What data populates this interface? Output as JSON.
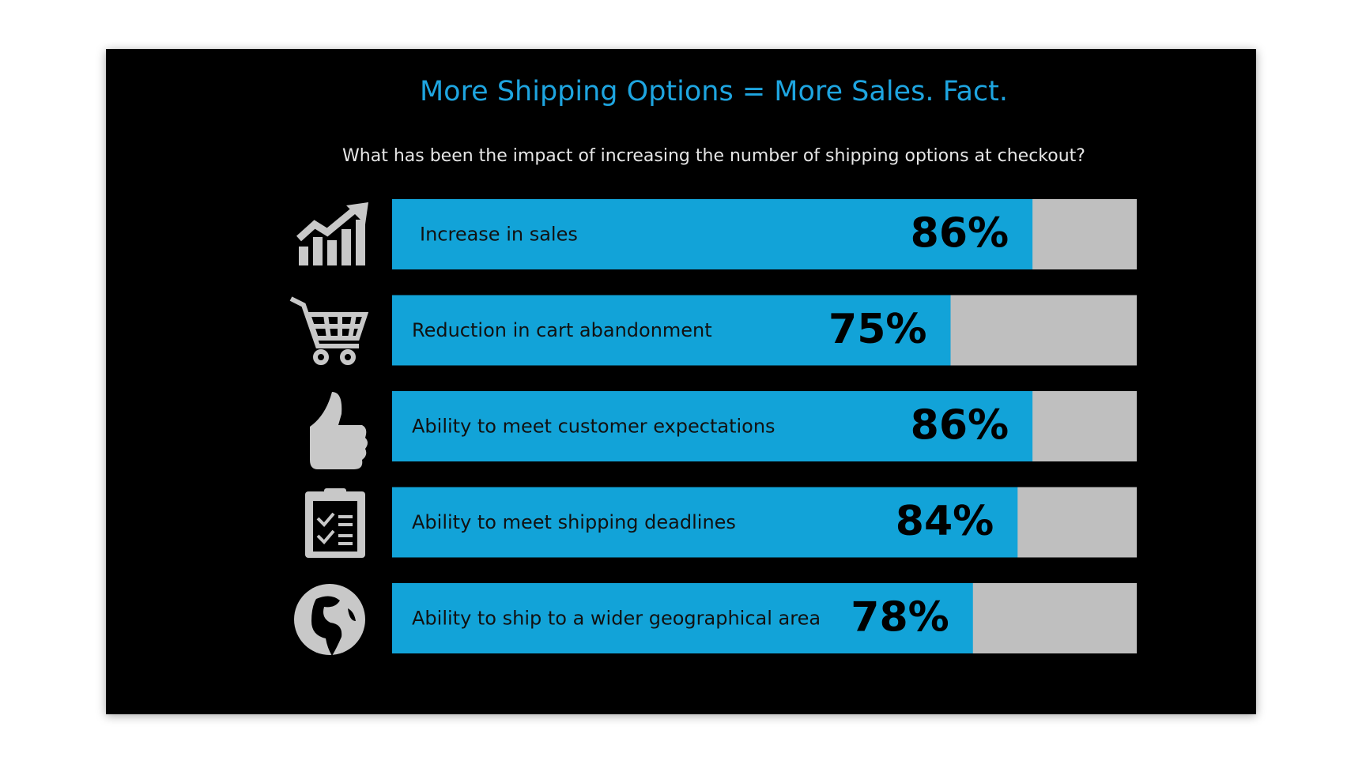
{
  "chart_data": {
    "type": "hbar",
    "title": "More Shipping Options = More Sales. Fact.",
    "subtitle": "What has been the impact of increasing the number of shipping options at checkout?",
    "categories": [
      "Increase in sales",
      "Reduction in cart abandonment",
      "Ability to meet customer expectations",
      "Ability to meet shipping deadlines",
      "Ability to ship to a wider geographical area"
    ],
    "values": [
      86,
      75,
      86,
      84,
      78
    ],
    "value_labels": [
      "86%",
      "75%",
      "86%",
      "84%",
      "78%"
    ],
    "xlim": [
      0,
      100
    ],
    "color": "#12a3d8",
    "track_color": "#bfbfbf"
  }
}
